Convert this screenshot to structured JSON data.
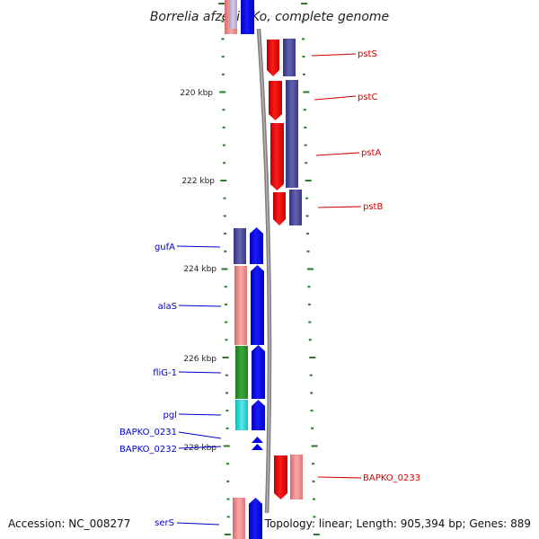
{
  "title": "Borrelia afzelii PKo, complete genome",
  "accession": "Accession: NC_008277",
  "summary": "Topology: linear; Length: 905,394 bp; Genes: 889",
  "colors": {
    "forward_label": "#d00000",
    "reverse_label": "#0000cc",
    "tick": "#2a7a2a",
    "backbone": "#808080",
    "cds_red": "#ee0000",
    "cds_blue": "#0000ee",
    "cog_purple": "#4a4a9a",
    "cog_pink": "#ef8a8a",
    "cog_green": "#2a8f2a",
    "cog_cyan": "#22cccc"
  },
  "scale_labels": [
    "220 kbp",
    "222 kbp",
    "224 kbp",
    "226 kbp",
    "228 kbp"
  ],
  "forward_genes": [
    {
      "label": "pstS"
    },
    {
      "label": "pstC"
    },
    {
      "label": "pstA"
    },
    {
      "label": "pstB"
    },
    {
      "label": "BAPKO_0233"
    }
  ],
  "reverse_genes": [
    {
      "label": "gufA"
    },
    {
      "label": "alaS"
    },
    {
      "label": "fliG-1"
    },
    {
      "label": "pgl"
    },
    {
      "label": "BAPKO_0231"
    },
    {
      "label": "BAPKO_0232"
    },
    {
      "label": "serS"
    }
  ]
}
